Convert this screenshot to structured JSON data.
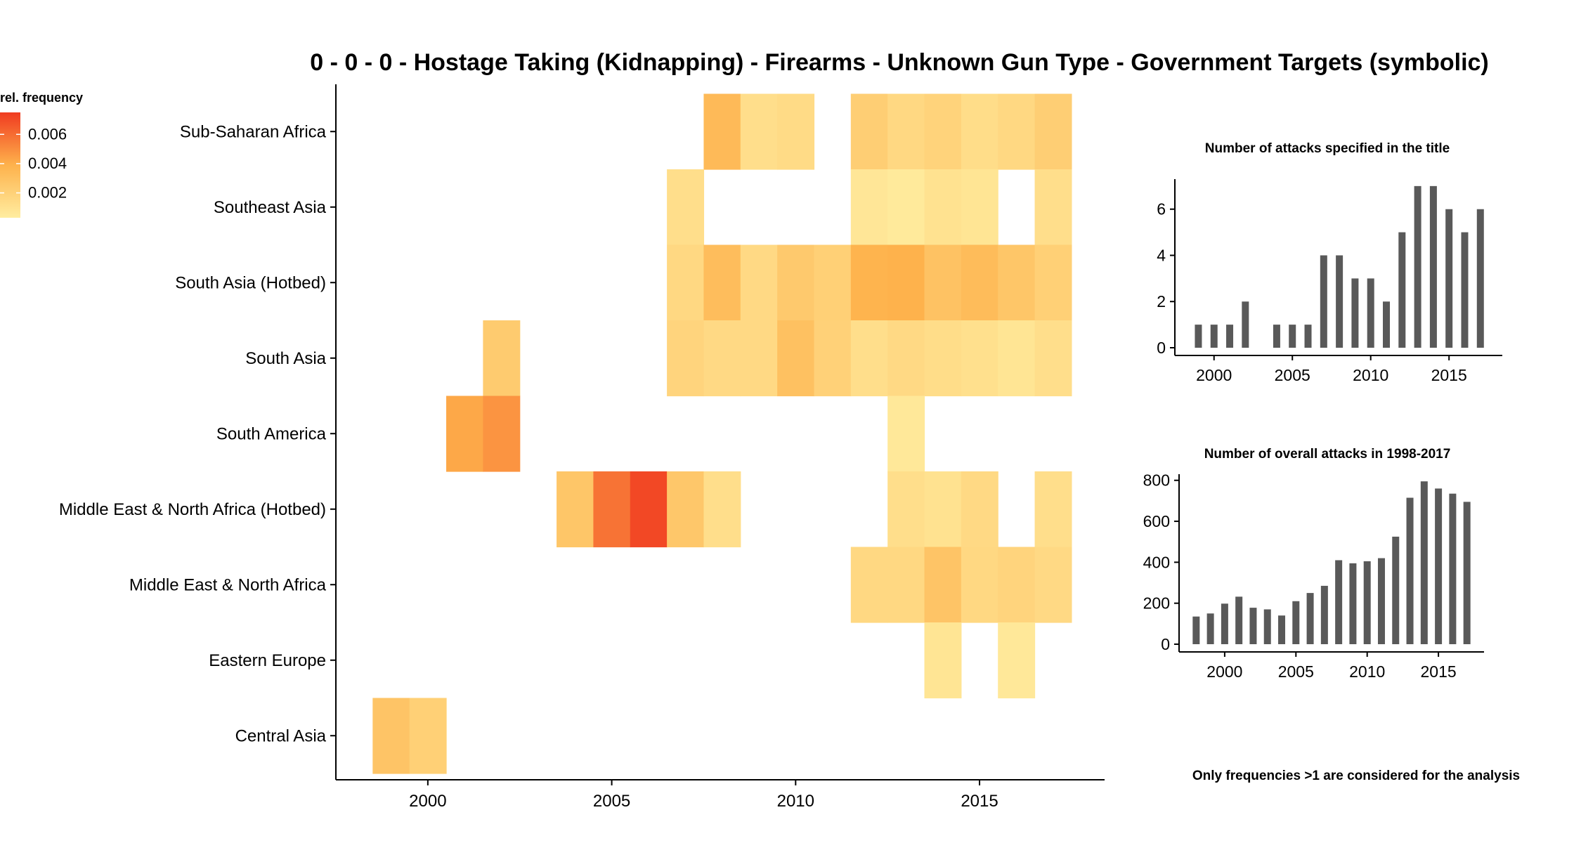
{
  "title": "0 - 0 - 0 - Hostage Taking (Kidnapping) - Firearms - Unknown Gun Type - Government Targets (symbolic)",
  "footnote": "Only frequencies >1 are considered for the analysis",
  "colors": {
    "low": "#FFEDA0",
    "mid": "#FEB24C",
    "high": "#F03B20",
    "bar": "#595959",
    "axis": "#000000"
  },
  "chart_data": [
    {
      "type": "heatmap",
      "title": "",
      "xlabel": "",
      "ylabel": "",
      "legend_title": "rel. frequency",
      "legend_ticks": [
        "0.006",
        "0.004",
        "0.002"
      ],
      "legend_tick_values": [
        0.006,
        0.004,
        0.002
      ],
      "legend_range": [
        0.0003,
        0.0075
      ],
      "legend_placement": "top-left",
      "xlim": [
        1997.5,
        2018.4
      ],
      "x_ticks": [
        2000,
        2005,
        2010,
        2015
      ],
      "rows": [
        "Central Asia",
        "Eastern Europe",
        "Middle East & North Africa",
        "Middle East & North Africa (Hotbed)",
        "South America",
        "South Asia",
        "South Asia (Hotbed)",
        "Southeast Asia",
        "Sub-Saharan Africa"
      ],
      "cells": [
        {
          "row": "Sub-Saharan Africa",
          "year": 2008,
          "value": 0.0034
        },
        {
          "row": "Sub-Saharan Africa",
          "year": 2009,
          "value": 0.0012
        },
        {
          "row": "Sub-Saharan Africa",
          "year": 2010,
          "value": 0.0014
        },
        {
          "row": "Sub-Saharan Africa",
          "year": 2012,
          "value": 0.0022
        },
        {
          "row": "Sub-Saharan Africa",
          "year": 2013,
          "value": 0.0016
        },
        {
          "row": "Sub-Saharan Africa",
          "year": 2014,
          "value": 0.0019
        },
        {
          "row": "Sub-Saharan Africa",
          "year": 2015,
          "value": 0.0013
        },
        {
          "row": "Sub-Saharan Africa",
          "year": 2016,
          "value": 0.0016
        },
        {
          "row": "Sub-Saharan Africa",
          "year": 2017,
          "value": 0.0022
        },
        {
          "row": "Southeast Asia",
          "year": 2007,
          "value": 0.0012
        },
        {
          "row": "Southeast Asia",
          "year": 2012,
          "value": 0.0007
        },
        {
          "row": "Southeast Asia",
          "year": 2013,
          "value": 0.0005
        },
        {
          "row": "Southeast Asia",
          "year": 2014,
          "value": 0.001
        },
        {
          "row": "Southeast Asia",
          "year": 2015,
          "value": 0.0008
        },
        {
          "row": "Southeast Asia",
          "year": 2017,
          "value": 0.0012
        },
        {
          "row": "South Asia (Hotbed)",
          "year": 2007,
          "value": 0.0016
        },
        {
          "row": "South Asia (Hotbed)",
          "year": 2008,
          "value": 0.0032
        },
        {
          "row": "South Asia (Hotbed)",
          "year": 2009,
          "value": 0.0015
        },
        {
          "row": "South Asia (Hotbed)",
          "year": 2010,
          "value": 0.0025
        },
        {
          "row": "South Asia (Hotbed)",
          "year": 2011,
          "value": 0.0021
        },
        {
          "row": "South Asia (Hotbed)",
          "year": 2012,
          "value": 0.0038
        },
        {
          "row": "South Asia (Hotbed)",
          "year": 2013,
          "value": 0.0039
        },
        {
          "row": "South Asia (Hotbed)",
          "year": 2014,
          "value": 0.0029
        },
        {
          "row": "South Asia (Hotbed)",
          "year": 2015,
          "value": 0.0033
        },
        {
          "row": "South Asia (Hotbed)",
          "year": 2016,
          "value": 0.0027
        },
        {
          "row": "South Asia (Hotbed)",
          "year": 2017,
          "value": 0.0021
        },
        {
          "row": "South Asia",
          "year": 2002,
          "value": 0.0024
        },
        {
          "row": "South Asia",
          "year": 2007,
          "value": 0.0018
        },
        {
          "row": "South Asia",
          "year": 2008,
          "value": 0.0015
        },
        {
          "row": "South Asia",
          "year": 2009,
          "value": 0.0015
        },
        {
          "row": "South Asia",
          "year": 2010,
          "value": 0.003
        },
        {
          "row": "South Asia",
          "year": 2011,
          "value": 0.002
        },
        {
          "row": "South Asia",
          "year": 2012,
          "value": 0.0012
        },
        {
          "row": "South Asia",
          "year": 2013,
          "value": 0.0015
        },
        {
          "row": "South Asia",
          "year": 2014,
          "value": 0.0013
        },
        {
          "row": "South Asia",
          "year": 2015,
          "value": 0.0011
        },
        {
          "row": "South Asia",
          "year": 2016,
          "value": 0.0008
        },
        {
          "row": "South Asia",
          "year": 2017,
          "value": 0.0012
        },
        {
          "row": "South America",
          "year": 2001,
          "value": 0.0042
        },
        {
          "row": "South America",
          "year": 2002,
          "value": 0.0048
        },
        {
          "row": "South America",
          "year": 2013,
          "value": 0.0006
        },
        {
          "row": "Middle East & North Africa (Hotbed)",
          "year": 2004,
          "value": 0.0027
        },
        {
          "row": "Middle East & North Africa (Hotbed)",
          "year": 2005,
          "value": 0.0058
        },
        {
          "row": "Middle East & North Africa (Hotbed)",
          "year": 2006,
          "value": 0.0071
        },
        {
          "row": "Middle East & North Africa (Hotbed)",
          "year": 2007,
          "value": 0.0026
        },
        {
          "row": "Middle East & North Africa (Hotbed)",
          "year": 2008,
          "value": 0.0012
        },
        {
          "row": "Middle East & North Africa (Hotbed)",
          "year": 2013,
          "value": 0.0012
        },
        {
          "row": "Middle East & North Africa (Hotbed)",
          "year": 2014,
          "value": 0.001
        },
        {
          "row": "Middle East & North Africa (Hotbed)",
          "year": 2015,
          "value": 0.0015
        },
        {
          "row": "Middle East & North Africa (Hotbed)",
          "year": 2017,
          "value": 0.0012
        },
        {
          "row": "Middle East & North Africa",
          "year": 2012,
          "value": 0.0016
        },
        {
          "row": "Middle East & North Africa",
          "year": 2013,
          "value": 0.0016
        },
        {
          "row": "Middle East & North Africa",
          "year": 2014,
          "value": 0.0028
        },
        {
          "row": "Middle East & North Africa",
          "year": 2015,
          "value": 0.0016
        },
        {
          "row": "Middle East & North Africa",
          "year": 2016,
          "value": 0.0018
        },
        {
          "row": "Middle East & North Africa",
          "year": 2017,
          "value": 0.0015
        },
        {
          "row": "Eastern Europe",
          "year": 2014,
          "value": 0.0008
        },
        {
          "row": "Eastern Europe",
          "year": 2016,
          "value": 0.0006
        },
        {
          "row": "Central Asia",
          "year": 1999,
          "value": 0.0028
        },
        {
          "row": "Central Asia",
          "year": 2000,
          "value": 0.0021
        }
      ]
    },
    {
      "type": "bar",
      "title": "Number of attacks specified in the title",
      "xlabel": "",
      "ylabel": "",
      "x": [
        1998,
        1999,
        2000,
        2001,
        2002,
        2003,
        2004,
        2005,
        2006,
        2007,
        2008,
        2009,
        2010,
        2011,
        2012,
        2013,
        2014,
        2015,
        2016,
        2017
      ],
      "values": [
        0,
        1,
        1,
        1,
        2,
        0,
        1,
        1,
        1,
        4,
        4,
        3,
        3,
        2,
        5,
        7,
        7,
        6,
        5,
        6
      ],
      "xlim": [
        1997.5,
        2018.4
      ],
      "ylim": [
        0,
        7.3
      ],
      "x_ticks": [
        2000,
        2005,
        2010,
        2015
      ],
      "y_ticks": [
        0,
        2,
        4,
        6
      ]
    },
    {
      "type": "bar",
      "title": "Number of overall attacks in 1998-2017",
      "xlabel": "",
      "ylabel": "",
      "x": [
        1998,
        1999,
        2000,
        2001,
        2002,
        2003,
        2004,
        2005,
        2006,
        2007,
        2008,
        2009,
        2010,
        2011,
        2012,
        2013,
        2014,
        2015,
        2016,
        2017
      ],
      "values": [
        135,
        150,
        198,
        232,
        178,
        170,
        140,
        210,
        250,
        285,
        410,
        395,
        405,
        420,
        525,
        715,
        795,
        760,
        735,
        695
      ],
      "xlim": [
        1996.8,
        2018.2
      ],
      "ylim": [
        0,
        830
      ],
      "x_ticks": [
        2000,
        2005,
        2010,
        2015
      ],
      "y_ticks": [
        0,
        200,
        400,
        600,
        800
      ]
    }
  ]
}
